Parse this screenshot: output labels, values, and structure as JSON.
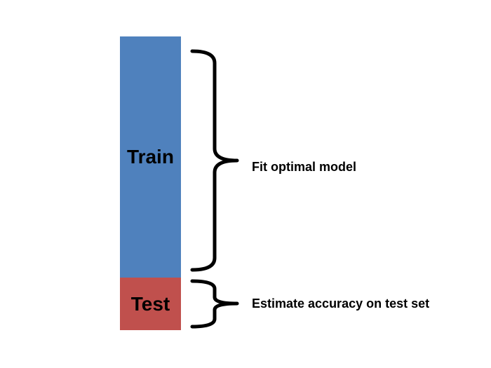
{
  "diagram": {
    "train": {
      "label": "Train",
      "annotation": "Fit optimal model",
      "color": "#4f81bd"
    },
    "test": {
      "label": "Test",
      "annotation": "Estimate accuracy on test set",
      "color": "#c0504d"
    },
    "brace_color": "#000000"
  }
}
